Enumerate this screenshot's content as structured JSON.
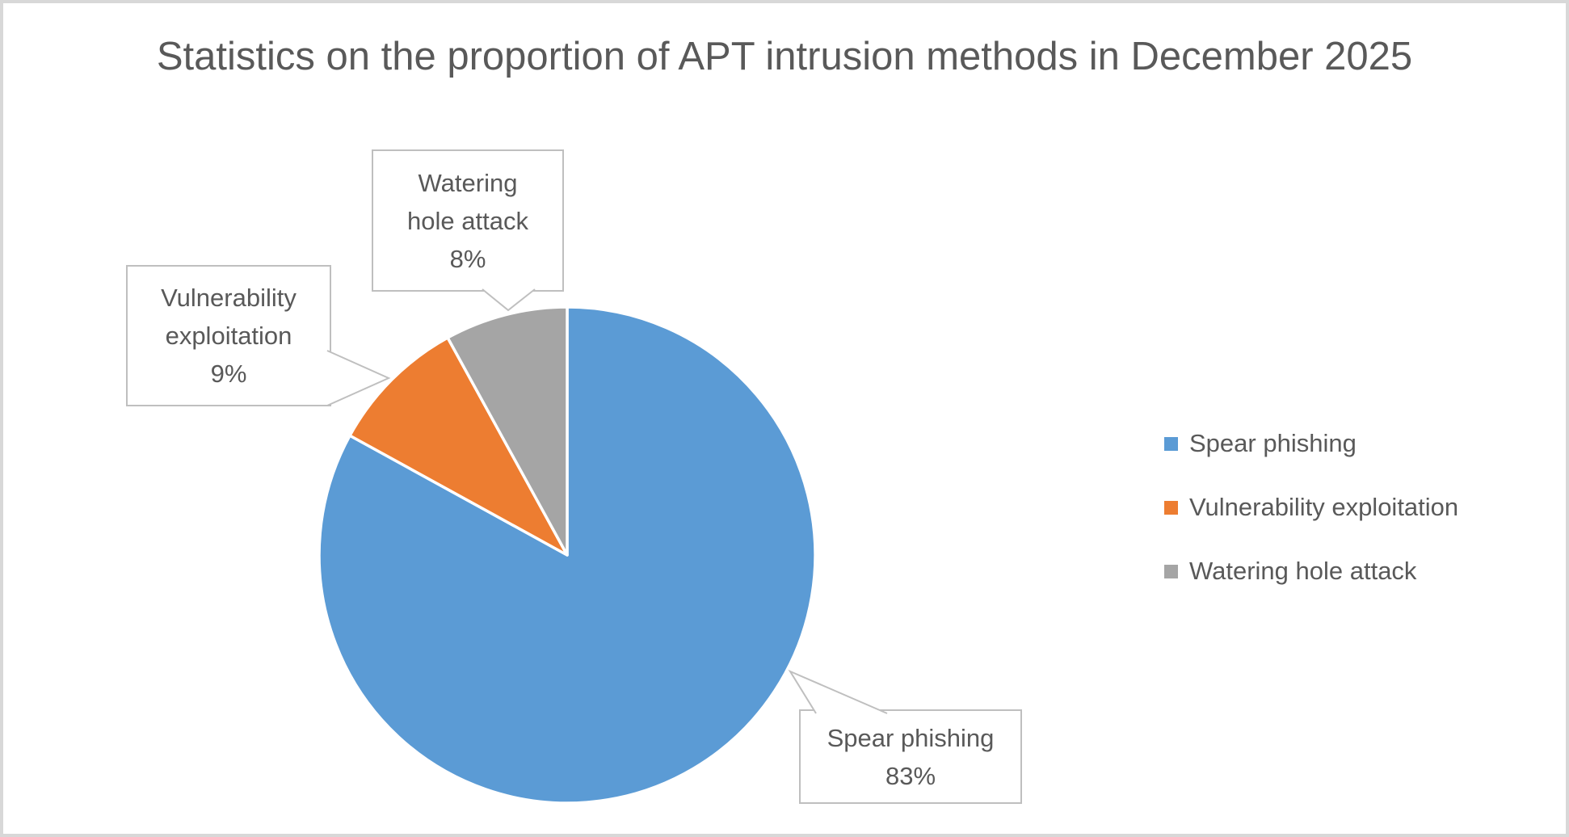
{
  "chart_data": {
    "type": "pie",
    "title": "Statistics on the proportion of APT intrusion methods in December 2025",
    "categories": [
      "Spear phishing",
      "Vulnerability exploitation",
      "Watering hole attack"
    ],
    "values": [
      83,
      9,
      8
    ],
    "unit": "%",
    "colors": [
      "#5B9BD5",
      "#ED7D31",
      "#A5A5A5"
    ],
    "start_angle_deg": 0,
    "direction": "clockwise",
    "legend_position": "right",
    "data_labels": [
      "Spear phishing 83%",
      "Vulnerability exploitation 9%",
      "Watering hole attack 8%"
    ],
    "background": "#FFFFFF",
    "text_color": "#595959"
  },
  "title": {
    "text": "Statistics on the proportion of APT intrusion methods in December 2025"
  },
  "callouts": [
    {
      "name": "watering-hole-attack",
      "lines": [
        "Watering",
        "hole attack",
        "8%"
      ]
    },
    {
      "name": "vulnerability-exploitation",
      "lines": [
        "Vulnerability",
        "exploitation",
        "9%"
      ]
    },
    {
      "name": "spear-phishing",
      "lines": [
        "Spear phishing",
        "83%"
      ]
    }
  ],
  "legend": {
    "items": [
      {
        "label": "Spear phishing",
        "color": "#5B9BD5"
      },
      {
        "label": "Vulnerability exploitation",
        "color": "#ED7D31"
      },
      {
        "label": "Watering hole attack",
        "color": "#A5A5A5"
      }
    ]
  }
}
